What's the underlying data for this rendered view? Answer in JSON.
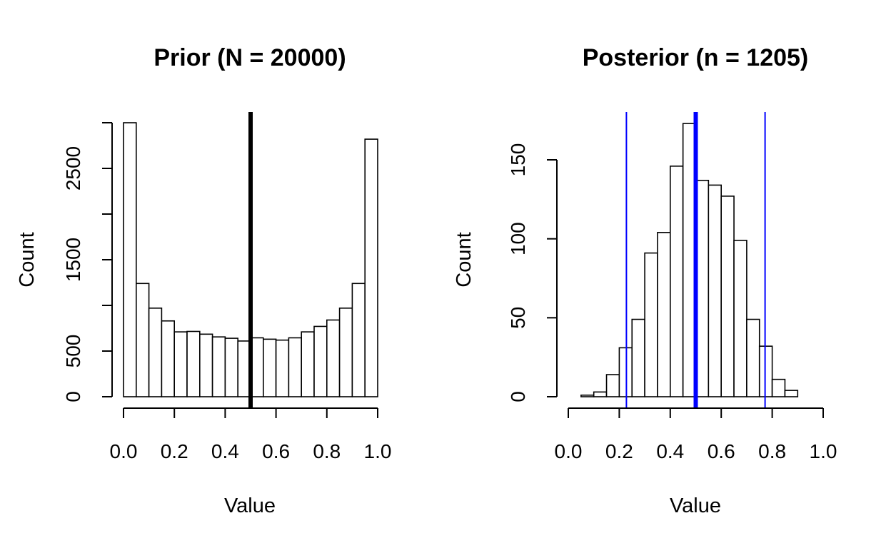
{
  "chart_data": [
    {
      "type": "bar",
      "title": "Prior (N = 20000)",
      "xlabel": "Value",
      "ylabel": "Count",
      "xlim": [
        0,
        1
      ],
      "ylim": [
        0,
        3000
      ],
      "xticks": [
        "0.0",
        "0.2",
        "0.4",
        "0.6",
        "0.8",
        "1.0"
      ],
      "yticks": [
        "0",
        "500",
        "1500",
        "2500"
      ],
      "bin_width": 0.05,
      "bin_starts": [
        0.0,
        0.05,
        0.1,
        0.15,
        0.2,
        0.25,
        0.3,
        0.35,
        0.4,
        0.45,
        0.5,
        0.55,
        0.6,
        0.65,
        0.7,
        0.75,
        0.8,
        0.85,
        0.9,
        0.95
      ],
      "values": [
        3000,
        1240,
        970,
        830,
        710,
        715,
        685,
        655,
        640,
        610,
        645,
        630,
        620,
        645,
        710,
        770,
        840,
        970,
        1240,
        2820
      ],
      "vlines": [
        {
          "x": 0.5,
          "color": "#000000",
          "weight": "thick"
        }
      ]
    },
    {
      "type": "bar",
      "title": "Posterior (n = 1205)",
      "xlabel": "Value",
      "ylabel": "Count",
      "xlim": [
        0,
        1
      ],
      "ylim": [
        0,
        150
      ],
      "xticks": [
        "0.0",
        "0.2",
        "0.4",
        "0.6",
        "0.8",
        "1.0"
      ],
      "yticks": [
        "0",
        "50",
        "100",
        "150"
      ],
      "bin_width": 0.05,
      "bin_starts": [
        0.05,
        0.1,
        0.15,
        0.2,
        0.25,
        0.3,
        0.35,
        0.4,
        0.45,
        0.5,
        0.55,
        0.6,
        0.65,
        0.7,
        0.75,
        0.8,
        0.85
      ],
      "values": [
        1,
        3,
        14,
        31,
        49,
        91,
        104,
        146,
        173,
        137,
        134,
        127,
        99,
        49,
        32,
        11,
        4
      ],
      "vlines": [
        {
          "x": 0.228,
          "color": "#0000ff",
          "weight": "thin"
        },
        {
          "x": 0.5,
          "color": "#0000ff",
          "weight": "thick"
        },
        {
          "x": 0.772,
          "color": "#0000ff",
          "weight": "thin"
        }
      ]
    }
  ]
}
